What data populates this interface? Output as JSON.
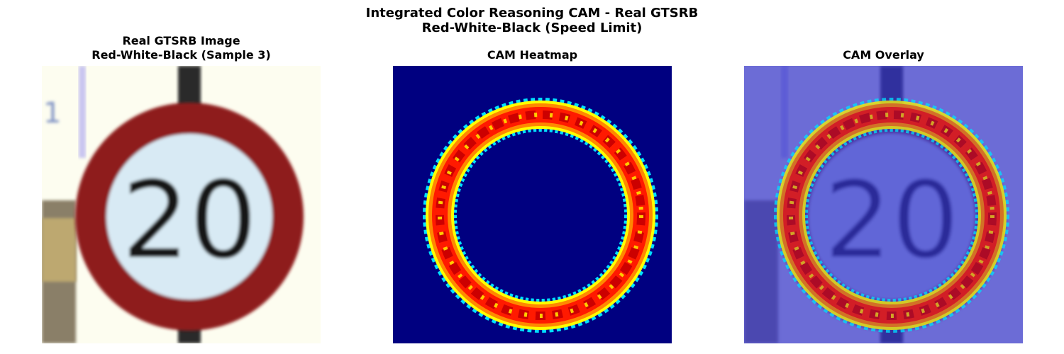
{
  "figure": {
    "title_line1": "Integrated Color Reasoning CAM - Real GTSRB",
    "title_line2": "Red-White-Black (Speed Limit)"
  },
  "panels": [
    {
      "title_line1": "Real GTSRB Image",
      "title_line2": "Red-White-Black (Sample 3)",
      "sign_text": "20",
      "sign_ring_color": "#8e1a1c",
      "sign_face_color": "#d8eaf4"
    },
    {
      "title_line1": "CAM Heatmap",
      "colormap": "jet",
      "background_color": "#000080"
    },
    {
      "title_line1": "CAM Overlay",
      "sign_text": "20",
      "overlay_color": "#3333cc"
    }
  ]
}
